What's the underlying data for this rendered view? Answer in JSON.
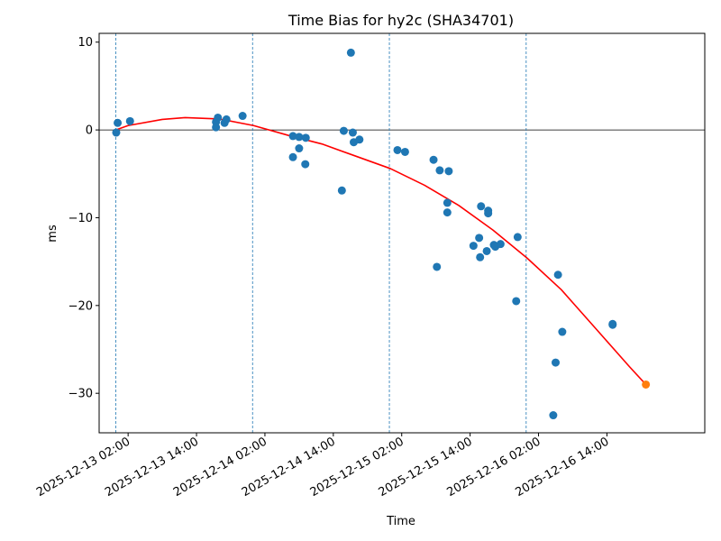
{
  "chart_data": {
    "type": "scatter",
    "title": "Time Bias for hy2c (SHA34701)",
    "xlabel": "Time",
    "ylabel": "ms",
    "x_ticks": [
      "2025-12-13 02:00",
      "2025-12-13 14:00",
      "2025-12-14 02:00",
      "2025-12-14 14:00",
      "2025-12-15 02:00",
      "2025-12-15 14:00",
      "2025-12-16 02:00",
      "2025-12-16 14:00"
    ],
    "y_ticks": [
      10,
      0,
      -10,
      -20,
      -30
    ],
    "y_tick_labels": [
      "10",
      "0",
      "−10",
      "−20",
      "−30"
    ],
    "xlim": [
      "2025-12-12 20:55",
      "2025-12-17 07:10"
    ],
    "ylim": [
      -34.5,
      11.0
    ],
    "grid": false,
    "zero_line": true,
    "vertical_markers": [
      "2025-12-12 23:50",
      "2025-12-13 23:50",
      "2025-12-14 23:50",
      "2025-12-15 23:50"
    ],
    "colors": {
      "points": "#1f77b4",
      "fit": "#ff0000",
      "predicted": "#ff7f0e",
      "markers": "#1f77b4"
    },
    "series": [
      {
        "kind": "points",
        "points": [
          {
            "x": "2025-12-12 23:55",
            "y": -0.3
          },
          {
            "x": "2025-12-13 00:10",
            "y": 0.8
          },
          {
            "x": "2025-12-13 02:20",
            "y": 1.0
          },
          {
            "x": "2025-12-13 17:25",
            "y": 0.3
          },
          {
            "x": "2025-12-13 17:25",
            "y": 0.9
          },
          {
            "x": "2025-12-13 17:45",
            "y": 1.4
          },
          {
            "x": "2025-12-13 18:55",
            "y": 0.8
          },
          {
            "x": "2025-12-13 19:15",
            "y": 1.2
          },
          {
            "x": "2025-12-13 22:05",
            "y": 1.6
          },
          {
            "x": "2025-12-14 06:55",
            "y": -0.7
          },
          {
            "x": "2025-12-14 06:55",
            "y": -3.1
          },
          {
            "x": "2025-12-14 08:00",
            "y": -0.8
          },
          {
            "x": "2025-12-14 08:00",
            "y": -2.1
          },
          {
            "x": "2025-12-14 09:05",
            "y": -3.9
          },
          {
            "x": "2025-12-14 09:10",
            "y": -0.9
          },
          {
            "x": "2025-12-14 15:30",
            "y": -6.9
          },
          {
            "x": "2025-12-14 15:50",
            "y": -0.1
          },
          {
            "x": "2025-12-14 17:05",
            "y": 8.8
          },
          {
            "x": "2025-12-14 17:25",
            "y": -0.3
          },
          {
            "x": "2025-12-14 17:35",
            "y": -1.4
          },
          {
            "x": "2025-12-14 18:35",
            "y": -1.1
          },
          {
            "x": "2025-12-15 01:15",
            "y": -2.3
          },
          {
            "x": "2025-12-15 02:35",
            "y": -2.5
          },
          {
            "x": "2025-12-15 07:35",
            "y": -3.4
          },
          {
            "x": "2025-12-15 08:10",
            "y": -15.6
          },
          {
            "x": "2025-12-15 08:40",
            "y": -4.6
          },
          {
            "x": "2025-12-15 10:00",
            "y": -8.3
          },
          {
            "x": "2025-12-15 10:00",
            "y": -9.4
          },
          {
            "x": "2025-12-15 10:15",
            "y": -4.7
          },
          {
            "x": "2025-12-15 14:35",
            "y": -13.2
          },
          {
            "x": "2025-12-15 15:35",
            "y": -12.3
          },
          {
            "x": "2025-12-15 15:45",
            "y": -14.5
          },
          {
            "x": "2025-12-15 15:55",
            "y": -8.7
          },
          {
            "x": "2025-12-15 16:55",
            "y": -13.8
          },
          {
            "x": "2025-12-15 17:10",
            "y": -9.2
          },
          {
            "x": "2025-12-15 17:10",
            "y": -9.5
          },
          {
            "x": "2025-12-15 18:10",
            "y": -13.1
          },
          {
            "x": "2025-12-15 18:25",
            "y": -13.3
          },
          {
            "x": "2025-12-15 19:20",
            "y": -13.0
          },
          {
            "x": "2025-12-15 22:05",
            "y": -19.5
          },
          {
            "x": "2025-12-15 22:20",
            "y": -12.2
          },
          {
            "x": "2025-12-16 04:35",
            "y": -32.5
          },
          {
            "x": "2025-12-16 05:00",
            "y": -26.5
          },
          {
            "x": "2025-12-16 05:25",
            "y": -16.5
          },
          {
            "x": "2025-12-16 06:10",
            "y": -23.0
          },
          {
            "x": "2025-12-16 15:00",
            "y": -22.1
          },
          {
            "x": "2025-12-16 15:00",
            "y": -22.2
          }
        ]
      },
      {
        "kind": "fit",
        "points": [
          {
            "x": "2025-12-12 23:50",
            "y": 0.0
          },
          {
            "x": "2025-12-13 02:00",
            "y": 0.5
          },
          {
            "x": "2025-12-13 08:00",
            "y": 1.2
          },
          {
            "x": "2025-12-13 12:00",
            "y": 1.4
          },
          {
            "x": "2025-12-13 18:00",
            "y": 1.25
          },
          {
            "x": "2025-12-14 00:00",
            "y": 0.5
          },
          {
            "x": "2025-12-14 06:00",
            "y": -0.6
          },
          {
            "x": "2025-12-14 12:00",
            "y": -1.6
          },
          {
            "x": "2025-12-14 18:00",
            "y": -3.0
          },
          {
            "x": "2025-12-15 00:00",
            "y": -4.4
          },
          {
            "x": "2025-12-15 06:00",
            "y": -6.3
          },
          {
            "x": "2025-12-15 12:00",
            "y": -8.6
          },
          {
            "x": "2025-12-15 18:00",
            "y": -11.4
          },
          {
            "x": "2025-12-16 00:00",
            "y": -14.6
          },
          {
            "x": "2025-12-16 06:00",
            "y": -18.2
          },
          {
            "x": "2025-12-16 12:00",
            "y": -22.6
          },
          {
            "x": "2025-12-16 18:00",
            "y": -27.0
          },
          {
            "x": "2025-12-16 20:50",
            "y": -29.0
          }
        ]
      },
      {
        "kind": "predicted",
        "points": [
          {
            "x": "2025-12-16 20:50",
            "y": -29.0
          }
        ]
      }
    ]
  }
}
